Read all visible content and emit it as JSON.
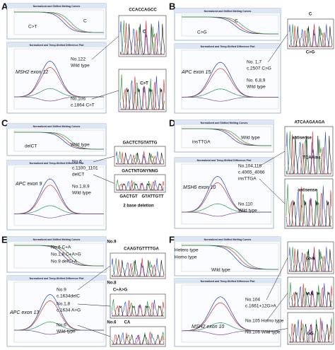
{
  "panels": [
    {
      "letter": "A",
      "melt_title": "Normalized and Shifted Melting Curves",
      "diff_title": "Normalized and Temp-Shifted Difference Plot",
      "melt_labels": [
        "C>T",
        "C"
      ],
      "gene": "MSH2 exon 12",
      "diff_labels": [
        "No.122",
        "Wild type",
        "No.106",
        "c.1864 C>T"
      ],
      "seq_labels": [
        "CCACCAGCC",
        "C",
        "C>T"
      ]
    },
    {
      "letter": "B",
      "melt_title": "Normalized and Shifted Melting Curves",
      "diff_title": "Normalized and Temp-Shifted Difference Plot",
      "melt_labels": [
        "C",
        "C>G"
      ],
      "gene": "APC exon 15",
      "diff_labels": [
        "No. 1,7",
        "c.2507 C>G",
        "No. 6,8,9",
        "Wild type"
      ],
      "seq_labels": [
        "C",
        "C>G"
      ]
    },
    {
      "letter": "C",
      "melt_title": "Normalized and Shifted Melting Curves",
      "diff_title": "Normalized and Temp-Shifted Difference Plot",
      "melt_labels": [
        "delCT",
        "Wild type"
      ],
      "gene": "APC exon 9",
      "diff_labels": [
        "No.6",
        "c.1100_1101",
        "delCT",
        "No.1,8,9",
        "Wild type"
      ],
      "seq_labels": [
        "GACTCTGTATTG",
        "GACTNTGNYNNG",
        "GACTGT",
        "GTATTGTT",
        "2 base deletion"
      ]
    },
    {
      "letter": "D",
      "melt_title": "Normalized and Shifted Melting Curves",
      "diff_title": "Normalized and Temp-Shifted Difference Plot",
      "melt_labels": [
        "insTTGA",
        "Wild type"
      ],
      "gene": "MSH6 exon 10",
      "diff_labels": [
        "No.104,118",
        "c.4065_4066",
        "insTTGA",
        "No.110",
        "Wild type"
      ],
      "seq_labels": [
        "ATCAAGAAGA",
        "antisense",
        "TCAAins",
        "antisense"
      ]
    },
    {
      "letter": "E",
      "melt_title": "Normalized and Shifted Melting Curves",
      "diff_title": "Normalized and Temp-Shifted Difference Plot",
      "melt_labels": [
        "No.6 C+A",
        "No.1,8 C+A>G",
        "No.9 delC+A"
      ],
      "gene": "APC exon 13",
      "diff_labels": [
        "No.9",
        "c.1634delC",
        "No.1,8",
        "c.1634 A>G",
        "No.6",
        "Wild type"
      ],
      "seq_labels": [
        "No.9",
        "CAAGTGTTTTGA",
        "No.8",
        "C+A>G",
        "No.6",
        "CA"
      ]
    },
    {
      "letter": "F",
      "melt_title": "Normalized and Shifted Melting Curves",
      "diff_title": "Normalized and Temp-Shifted Difference Plot",
      "melt_labels": [
        "Hetero type",
        "Homo type",
        "Wild type"
      ],
      "gene": "MSH2 exon 10",
      "diff_labels": [
        "No.104",
        "c.1661+12G>A",
        "No.105 Homo type",
        "No.106 Wild type"
      ],
      "seq_labels": [
        "G>A",
        "AA",
        "GG"
      ]
    }
  ]
}
